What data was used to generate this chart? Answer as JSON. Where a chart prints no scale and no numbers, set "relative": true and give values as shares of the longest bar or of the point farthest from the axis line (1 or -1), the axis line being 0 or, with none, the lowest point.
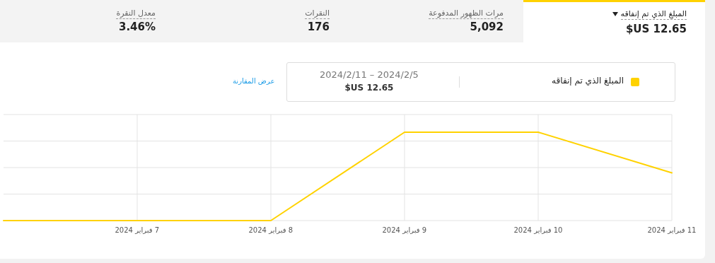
{
  "chart_data": [
    {
      "type": "other",
      "annotations": [
        "المبلغ الذي تم إنفاقه",
        "12.65 US$",
        "مرات الظهور المدفوعة",
        "5,092",
        "النقرات",
        "176",
        "معدل النقرة",
        "3.46%"
      ]
    },
    {
      "type": "line",
      "relative": true,
      "x": [
        "2024-02-06",
        "2024-02-07",
        "2024-02-08",
        "2024-02-09",
        "2024-02-10",
        "2024-02-11"
      ],
      "series": [
        {
          "name": "المبلغ الذي تم إنفاقه",
          "color": "#ffd200",
          "values": [
            0,
            0,
            0,
            1,
            1,
            0.54
          ]
        }
      ],
      "xlim": [
        "2024-02-06",
        "2024-02-11"
      ],
      "xticks": [
        {
          "value": "2024-02-07",
          "label": "7 فبراير 2024"
        },
        {
          "value": "2024-02-08",
          "label": "8 فبراير 2024"
        },
        {
          "value": "2024-02-09",
          "label": "9 فبراير 2024"
        },
        {
          "value": "2024-02-10",
          "label": "10 فبراير 2024"
        },
        {
          "value": "2024-02-11",
          "label": "11 فبراير 2024"
        }
      ],
      "grid": true,
      "legend": "top",
      "annotations": [
        "2024/2/5 – 2024/2/11",
        "12.65 US$",
        "عرض المقارنة"
      ]
    }
  ]
}
